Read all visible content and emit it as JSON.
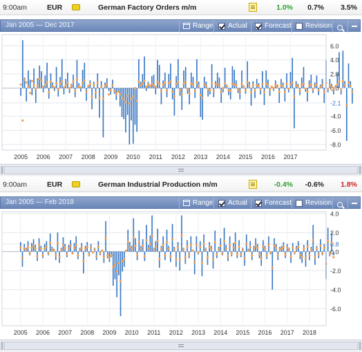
{
  "events": [
    {
      "time": "9:00am",
      "currency": "EUR",
      "name": "German Factory Orders m/m",
      "actual": "1.0%",
      "forecast": "0.7%",
      "previous": "3.5%",
      "colors": {
        "actual": "#2e9e2e",
        "forecast": "#222222",
        "previous": "#222222"
      },
      "toolbar": {
        "range_text": "Jan 2005 — Dec 2017",
        "range_label": "Range",
        "actual_label": "Actual",
        "forecast_label": "Forecast",
        "revision_label": "Revision",
        "actual_checked": true,
        "forecast_checked": true,
        "revision_checked": false
      },
      "chart_data": {
        "type": "bar",
        "title": "",
        "xlabel": "",
        "ylabel": "",
        "x_start": "2005-01",
        "x_end": "2017-12",
        "ylim": [
          -8.8,
          7.6
        ],
        "ytick_labels": [
          "6.0",
          "4.0",
          "2.0",
          "0.0",
          "-2.1",
          "-4.0",
          "-6.0",
          "-8.0"
        ],
        "ytick_values": [
          6.0,
          4.0,
          2.0,
          0.0,
          -2.1,
          -4.0,
          -6.0,
          -8.0
        ],
        "highlight_tick": "-2.1",
        "xtick_labels": [
          "2005",
          "2006",
          "2007",
          "2008",
          "2009",
          "2010",
          "2011",
          "2012",
          "2013",
          "2014",
          "2015",
          "2016",
          "2017"
        ],
        "grid": true,
        "bar_color": "#3a78c4",
        "forecast_color": "#f0a050",
        "series": [
          {
            "name": "Actual",
            "values": [
              -1.1,
              6.8,
              1.5,
              -1.9,
              2.5,
              1.2,
              -1.0,
              2.8,
              -2.1,
              1.4,
              3.2,
              2.4,
              -0.6,
              1.8,
              3.6,
              -1.5,
              2.1,
              0.8,
              -0.4,
              3.0,
              -1.2,
              1.6,
              4.1,
              -0.9,
              1.3,
              2.2,
              -0.7,
              0.6,
              1.9,
              -1.3,
              4.0,
              0.7,
              -0.5,
              2.6,
              3.6,
              -1.8,
              0.4,
              1.1,
              -3.0,
              0.9,
              -1.5,
              2.1,
              -4.2,
              1.0,
              -7.0,
              0.8,
              1.4,
              -0.4,
              -0.9,
              1.2,
              -0.8,
              -1.7,
              -0.6,
              -2.6,
              -4.1,
              -4.4,
              -6.3,
              -3.8,
              -8.0,
              -4.6,
              -7.9,
              -5.2,
              -6.2,
              4.1,
              0.9,
              2.0,
              4.5,
              -0.4,
              0.9,
              0.5,
              1.7,
              1.9,
              -0.9,
              4.0,
              3.3,
              -2.3,
              1.1,
              2.2,
              -1.3,
              2.0,
              3.5,
              -1.6,
              -3.9,
              1.7,
              4.1,
              -1.1,
              -3.1,
              2.5,
              3.0,
              -0.8,
              -2.3,
              2.2,
              1.6,
              -1.4,
              4.1,
              0.9,
              -4.1,
              -4.5,
              1.6,
              0.9,
              -1.2,
              -0.9,
              3.4,
              -1.3,
              1.0,
              2.2,
              1.5,
              -2.1,
              -0.6,
              2.9,
              0.5,
              -1.0,
              -1.6,
              3.1,
              2.6,
              1.1,
              -0.7,
              -1.6,
              2.5,
              0.4,
              -0.8,
              3.8,
              0.9,
              -2.5,
              1.0,
              -1.4,
              1.3,
              0.7,
              -0.9,
              2.4,
              -2.4,
              2.5,
              1.2,
              -1.1,
              0.3,
              -0.4,
              1.1,
              0.5,
              -2.1,
              1.3,
              0.8,
              -1.9,
              2.1,
              -0.6,
              2.3,
              4.3,
              -5.7,
              1.0,
              0.6,
              -1.0,
              1.5,
              3.0,
              -0.5,
              -1.9,
              1.1,
              1.9,
              -0.7,
              0.8,
              1.8,
              -1.0,
              0.5,
              1.3,
              -2.1,
              4.0,
              -0.6,
              1.3,
              0.6,
              -0.9,
              0.4,
              2.1,
              5.1,
              -0.9,
              5.3,
              1.0,
              -7.5,
              3.5,
              1.0,
              -2.2
            ]
          },
          {
            "name": "Forecast",
            "values": [
              0.5,
              -4.6,
              1.2,
              0.8,
              0.2,
              -0.7,
              1.0,
              0.4,
              -0.1,
              0.3,
              1.3,
              1.1,
              0.2,
              0.5,
              0.8,
              -0.6,
              0.9,
              0.3,
              0.1,
              0.7,
              -0.2,
              0.6,
              1.0,
              0.1,
              0.4,
              0.7,
              0.0,
              0.3,
              0.9,
              -0.4,
              1.2,
              0.2,
              0.1,
              0.7,
              1.1,
              -0.5,
              0.3,
              0.6,
              -1.2,
              0.4,
              -0.6,
              0.8,
              -1.4,
              0.2,
              -1.5,
              0.3,
              0.5,
              -0.9,
              -0.3,
              0.4,
              -0.4,
              -0.8,
              -0.5,
              -0.9,
              -1.4,
              -1.6,
              -2.0,
              -1.1,
              -2.2,
              -1.5,
              -1.2,
              0.0,
              -1.8,
              0.9,
              0.4,
              0.6,
              1.0,
              0.2,
              0.5,
              0.3,
              0.6,
              0.4,
              0.2,
              0.9,
              0.6,
              -0.4,
              0.5,
              0.8,
              -0.3,
              0.7,
              0.9,
              -0.5,
              -1.2,
              0.6,
              0.9,
              -0.3,
              -0.9,
              0.7,
              0.8,
              -0.2,
              -0.7,
              0.6,
              0.5,
              -0.4,
              0.8,
              0.3,
              -1.0,
              -1.4,
              0.5,
              0.3,
              -0.2,
              -0.3,
              0.7,
              -0.4,
              0.5,
              0.6,
              0.4,
              -0.5,
              0.0,
              0.7,
              0.3,
              -0.3,
              -0.4,
              0.6,
              0.5,
              0.4,
              -0.2,
              -0.5,
              0.6,
              0.2,
              -0.3,
              0.8,
              0.3,
              -0.6,
              0.4,
              -0.3,
              0.4,
              0.3,
              -0.2,
              0.6,
              -0.6,
              0.6,
              0.4,
              -0.2,
              0.2,
              0.0,
              0.4,
              0.2,
              -0.5,
              0.4,
              0.3,
              -0.6,
              0.6,
              -0.1,
              0.5,
              0.8,
              -1.2,
              0.4,
              0.2,
              -0.3,
              0.5,
              0.6,
              -0.1,
              -0.5,
              0.4,
              0.5,
              -0.2,
              0.3,
              0.5,
              -0.3,
              0.2,
              0.4,
              -0.5,
              0.7,
              -0.1,
              0.4,
              0.2,
              -0.2,
              0.1,
              0.5,
              0.9,
              -0.2,
              1.0,
              0.4,
              -2.4,
              0.8,
              0.3,
              -0.5
            ]
          }
        ]
      }
    },
    {
      "time": "9:00am",
      "currency": "EUR",
      "name": "German Industrial Production m/m",
      "actual": "-0.4%",
      "forecast": "-0.6%",
      "previous": "1.8%",
      "colors": {
        "actual": "#2e9e2e",
        "forecast": "#222222",
        "previous": "#cc2222"
      },
      "toolbar": {
        "range_text": "Jan 2005 — Feb 2018",
        "range_label": "Range",
        "actual_label": "Actual",
        "forecast_label": "Forecast",
        "revision_label": "Revision",
        "actual_checked": true,
        "forecast_checked": true,
        "revision_checked": false
      },
      "chart_data": {
        "type": "bar",
        "title": "",
        "xlabel": "",
        "ylabel": "",
        "x_start": "2005-01",
        "x_end": "2018-02",
        "ylim": [
          -7.8,
          4.2
        ],
        "ytick_labels": [
          "4.0",
          "2.0",
          "0.8",
          "0.0",
          "-2.0",
          "-4.0",
          "-6.0"
        ],
        "ytick_values": [
          4.0,
          2.0,
          0.8,
          0.0,
          -2.0,
          -4.0,
          -6.0
        ],
        "highlight_tick": "0.8",
        "xtick_labels": [
          "2005",
          "2006",
          "2007",
          "2008",
          "2009",
          "2010",
          "2011",
          "2012",
          "2013",
          "2014",
          "2015",
          "2016",
          "2017",
          "2018"
        ],
        "grid": true,
        "bar_color": "#3a78c4",
        "forecast_color": "#f0a050",
        "series": [
          {
            "name": "Actual",
            "values": [
              1.0,
              -1.6,
              0.8,
              0.4,
              1.1,
              -0.4,
              0.9,
              1.3,
              0.7,
              -1.0,
              1.4,
              0.6,
              -0.7,
              0.8,
              1.1,
              -0.4,
              1.9,
              0.5,
              0.3,
              -0.9,
              2.0,
              -1.2,
              0.4,
              1.5,
              0.8,
              -0.6,
              0.7,
              1.2,
              -0.3,
              0.9,
              1.6,
              -0.8,
              0.4,
              0.9,
              -2.3,
              0.6,
              1.0,
              -0.5,
              0.8,
              -0.2,
              0.4,
              -0.9,
              1.1,
              -0.4,
              0.2,
              -1.2,
              3.2,
              -0.7,
              -1.1,
              -0.6,
              -3.6,
              -2.9,
              -4.8,
              -2.5,
              -6.8,
              -2.1,
              -1.6,
              0.2,
              2.3,
              1.0,
              0.6,
              3.5,
              1.4,
              -0.9,
              2.2,
              0.6,
              1.3,
              -1.0,
              2.8,
              0.7,
              1.7,
              3.8,
              0.4,
              1.1,
              2.4,
              -1.7,
              0.6,
              1.6,
              -0.9,
              2.3,
              0.6,
              -1.1,
              2.9,
              0.5,
              -1.6,
              1.0,
              -2.0,
              3.8,
              0.4,
              -1.3,
              1.2,
              -0.7,
              1.6,
              0.2,
              -2.4,
              1.6,
              -0.3,
              1.1,
              -2.6,
              1.8,
              0.4,
              -1.4,
              1.0,
              0.6,
              -1.8,
              2.2,
              -0.7,
              0.5,
              1.4,
              -0.4,
              2.5,
              0.7,
              -1.0,
              1.6,
              -0.5,
              0.9,
              2.0,
              -0.7,
              1.2,
              -0.6,
              0.4,
              -1.5,
              1.8,
              0.3,
              1.1,
              -0.9,
              0.6,
              1.4,
              0.8,
              -0.7,
              -1.5,
              1.2,
              0.6,
              -0.8,
              1.6,
              -0.3,
              -4.0,
              1.4,
              0.8,
              -0.9,
              0.5,
              0.6,
              1.0,
              -0.7,
              0.8,
              0.4,
              -1.2,
              0.9,
              -0.3,
              0.6,
              1.1,
              -0.8,
              -1.2,
              0.7,
              -1.6,
              1.2,
              -0.9,
              0.5,
              2.8,
              -1.4,
              0.6,
              -0.7,
              1.3,
              -0.4,
              0.8,
              -2.9,
              2.5,
              -0.5,
              2.0,
              -0.4
            ]
          },
          {
            "name": "Forecast",
            "values": [
              0.4,
              -0.7,
              0.3,
              0.2,
              0.5,
              -0.2,
              0.4,
              0.6,
              0.3,
              -0.5,
              0.7,
              0.3,
              -0.4,
              0.3,
              0.5,
              -0.2,
              0.9,
              0.2,
              0.1,
              -0.4,
              0.9,
              -0.6,
              0.2,
              0.7,
              0.4,
              -0.3,
              0.3,
              0.6,
              -0.2,
              0.4,
              0.7,
              -0.4,
              0.2,
              0.4,
              -1.0,
              0.3,
              0.5,
              -0.3,
              0.4,
              -0.1,
              0.2,
              -0.5,
              0.5,
              -0.2,
              0.1,
              -0.6,
              1.4,
              -0.4,
              -0.6,
              -0.4,
              -1.6,
              -1.4,
              -2.1,
              -1.2,
              -3.1,
              -1.0,
              -0.8,
              0.1,
              1.0,
              0.5,
              0.3,
              1.5,
              0.6,
              -0.4,
              1.0,
              0.3,
              0.6,
              -0.5,
              1.2,
              0.3,
              0.8,
              1.6,
              0.2,
              0.5,
              1.1,
              -0.8,
              0.3,
              0.7,
              -0.4,
              1.0,
              0.3,
              -0.5,
              1.3,
              0.2,
              -0.8,
              0.5,
              -0.9,
              1.7,
              0.2,
              -0.6,
              0.5,
              -0.3,
              0.7,
              0.1,
              -1.1,
              0.7,
              -0.1,
              0.5,
              -1.2,
              0.8,
              0.2,
              -0.6,
              0.5,
              0.3,
              -0.8,
              1.0,
              -0.3,
              0.2,
              0.6,
              -0.2,
              1.1,
              0.3,
              -0.5,
              0.7,
              -0.2,
              0.4,
              0.9,
              -0.3,
              0.5,
              -0.3,
              0.2,
              -0.7,
              0.8,
              0.1,
              0.5,
              -0.4,
              0.3,
              0.6,
              0.4,
              -0.3,
              -0.7,
              0.5,
              0.3,
              -0.4,
              0.7,
              -0.1,
              -1.7,
              0.6,
              0.4,
              -0.4,
              0.2,
              0.3,
              0.5,
              -0.3,
              0.4,
              0.2,
              -0.5,
              0.4,
              -0.1,
              0.3,
              0.5,
              -0.4,
              -0.6,
              0.3,
              -0.7,
              0.5,
              -0.4,
              0.2,
              1.2,
              -0.6,
              0.3,
              -0.3,
              0.6,
              -0.2,
              0.4,
              -1.3,
              1.1,
              -0.2,
              0.9,
              -0.6
            ]
          }
        ]
      }
    }
  ]
}
